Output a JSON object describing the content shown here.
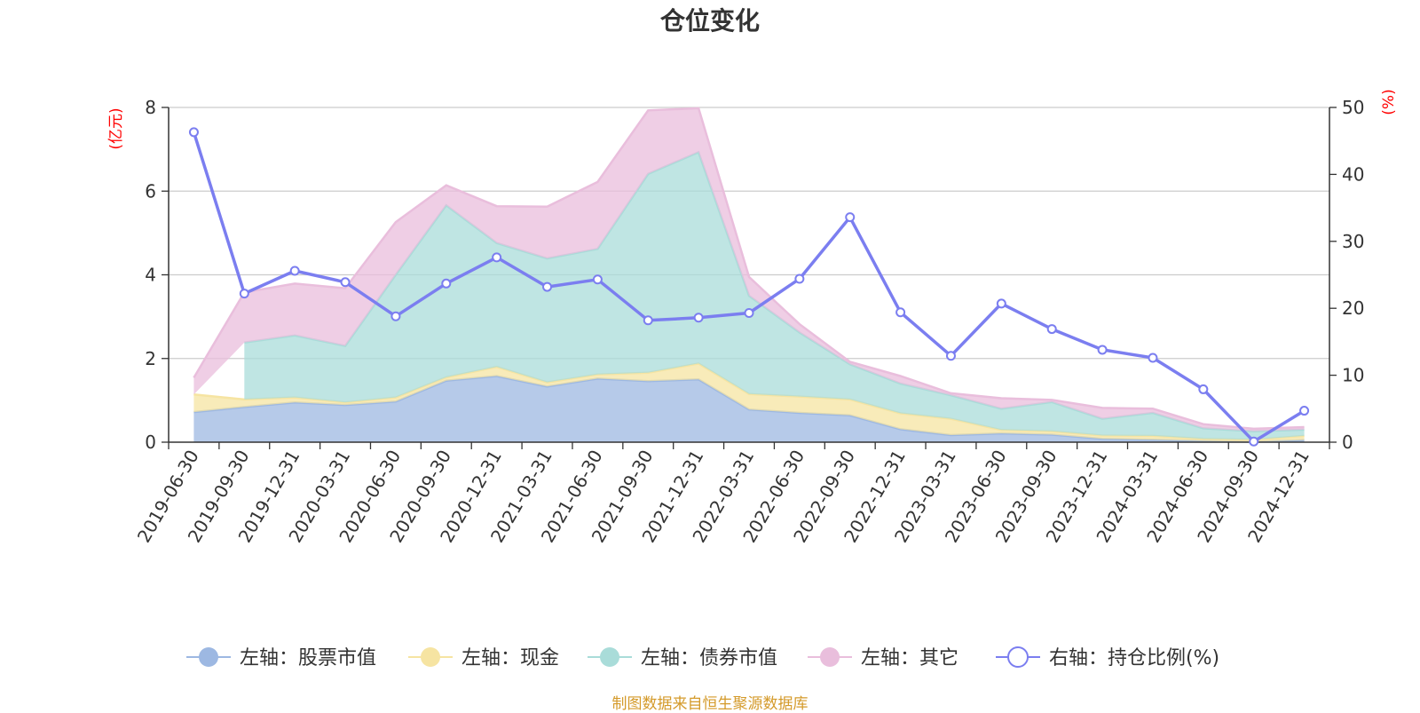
{
  "chart_data": {
    "type": "area",
    "title": "仓位变化",
    "left_axis": {
      "unit": "(亿元)",
      "ylim": [
        0,
        8
      ],
      "ticks": [
        "0",
        "2",
        "4",
        "6",
        "8"
      ]
    },
    "right_axis": {
      "unit": "(%)",
      "ylim": [
        0,
        50
      ],
      "ticks": [
        "0",
        "10",
        "20",
        "30",
        "40",
        "50"
      ]
    },
    "categories": [
      "2019-06-30",
      "2019-09-30",
      "2019-12-31",
      "2020-03-31",
      "2020-06-30",
      "2020-09-30",
      "2020-12-31",
      "2021-03-31",
      "2021-06-30",
      "2021-09-30",
      "2021-12-31",
      "2022-03-31",
      "2022-06-30",
      "2022-09-30",
      "2022-12-31",
      "2023-03-31",
      "2023-06-30",
      "2023-09-30",
      "2023-12-31",
      "2024-03-31",
      "2024-06-30",
      "2024-09-30",
      "2024-12-31"
    ],
    "series": [
      {
        "name": "左轴：股票市值",
        "axis": "left",
        "kind": "stacked-area",
        "color": "#9db8e2",
        "values": [
          0.72,
          0.84,
          0.95,
          0.89,
          0.97,
          1.47,
          1.58,
          1.33,
          1.52,
          1.46,
          1.5,
          0.78,
          0.7,
          0.64,
          0.31,
          0.17,
          0.21,
          0.18,
          0.08,
          0.06,
          0.03,
          0.01,
          0.05
        ]
      },
      {
        "name": "左轴：现金",
        "axis": "left",
        "kind": "stacked-area",
        "color": "#f6e4a2",
        "values": [
          0.42,
          0.18,
          0.12,
          0.06,
          0.1,
          0.08,
          0.22,
          0.1,
          0.1,
          0.2,
          0.38,
          0.37,
          0.39,
          0.38,
          0.38,
          0.39,
          0.08,
          0.08,
          0.08,
          0.09,
          0.05,
          0.05,
          0.1
        ]
      },
      {
        "name": "左轴：债券市值",
        "axis": "left",
        "kind": "stacked-area",
        "color": "#a9dcd9",
        "values": [
          null,
          1.36,
          1.48,
          1.35,
          2.93,
          4.11,
          2.96,
          2.96,
          3.0,
          4.75,
          5.05,
          2.35,
          1.53,
          0.84,
          0.71,
          0.56,
          0.51,
          0.7,
          0.4,
          0.55,
          0.25,
          0.2,
          0.15
        ]
      },
      {
        "name": "左轴：其它",
        "axis": "left",
        "kind": "stacked-area",
        "color": "#e9bedc",
        "values": [
          0.4,
          1.2,
          1.24,
          1.38,
          1.26,
          0.48,
          0.88,
          1.24,
          1.6,
          1.52,
          1.05,
          0.45,
          0.2,
          0.06,
          0.18,
          0.05,
          0.25,
          0.05,
          0.26,
          0.1,
          0.1,
          0.06,
          0.06
        ]
      },
      {
        "name": "右轴：持仓比例(%)",
        "axis": "right",
        "kind": "line",
        "color": "#7b7ef0",
        "values": [
          46.3,
          22.2,
          25.6,
          23.9,
          18.8,
          23.7,
          27.6,
          23.2,
          24.3,
          18.2,
          18.6,
          19.3,
          24.4,
          33.6,
          19.4,
          12.9,
          20.7,
          16.9,
          13.8,
          12.6,
          7.9,
          0.1,
          4.7
        ]
      }
    ],
    "legend_position": "bottom",
    "grid": true
  },
  "footer": {
    "source": "制图数据来自恒生聚源数据库"
  }
}
